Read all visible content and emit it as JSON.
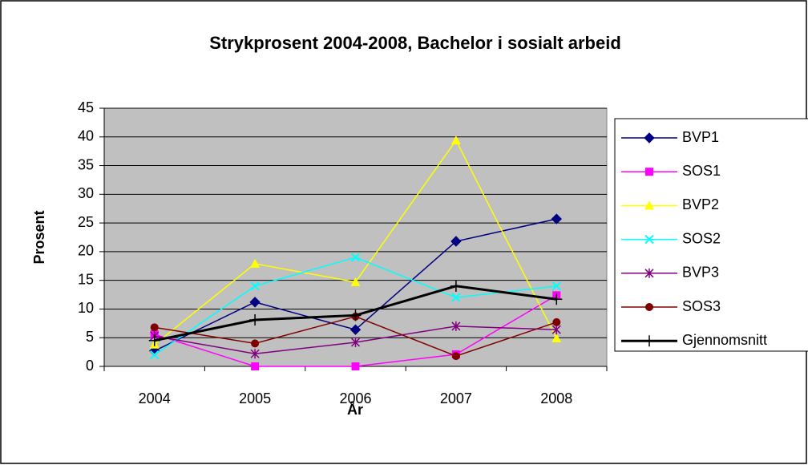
{
  "chart_data": {
    "type": "line",
    "title": "Strykprosent 2004-2008, Bachelor i sosialt arbeid",
    "x_label": "År",
    "y_label": "Prosent",
    "categories": [
      "2004",
      "2005",
      "2006",
      "2007",
      "2008"
    ],
    "ylim": [
      0,
      45
    ],
    "yticks": [
      0,
      5,
      10,
      15,
      20,
      25,
      30,
      35,
      40,
      45
    ],
    "grid": true,
    "series": [
      {
        "name": "BVP1",
        "color": "#000080",
        "marker": "diamond",
        "values": [
          2.7,
          11.2,
          6.4,
          21.8,
          25.7
        ]
      },
      {
        "name": "SOS1",
        "color": "#ff00ff",
        "marker": "square",
        "values": [
          5.6,
          0,
          0,
          2.1,
          12.4
        ]
      },
      {
        "name": "BVP2",
        "color": "#ffff00",
        "marker": "triangle",
        "values": [
          3.8,
          17.9,
          14.7,
          39.4,
          4.9
        ]
      },
      {
        "name": "SOS2",
        "color": "#00ffff",
        "marker": "x",
        "values": [
          2.0,
          14.0,
          19.0,
          12.0,
          14.0
        ]
      },
      {
        "name": "BVP3",
        "color": "#800080",
        "marker": "star",
        "values": [
          5.3,
          2.2,
          4.2,
          7.0,
          6.4
        ]
      },
      {
        "name": "SOS3",
        "color": "#800000",
        "marker": "circle",
        "values": [
          6.8,
          4.0,
          8.7,
          1.8,
          7.7
        ]
      },
      {
        "name": "Gjennomsnitt",
        "color": "#000000",
        "marker": "plus",
        "line_width": 3,
        "values": [
          4.5,
          8.1,
          8.9,
          14.0,
          11.7
        ]
      }
    ]
  }
}
